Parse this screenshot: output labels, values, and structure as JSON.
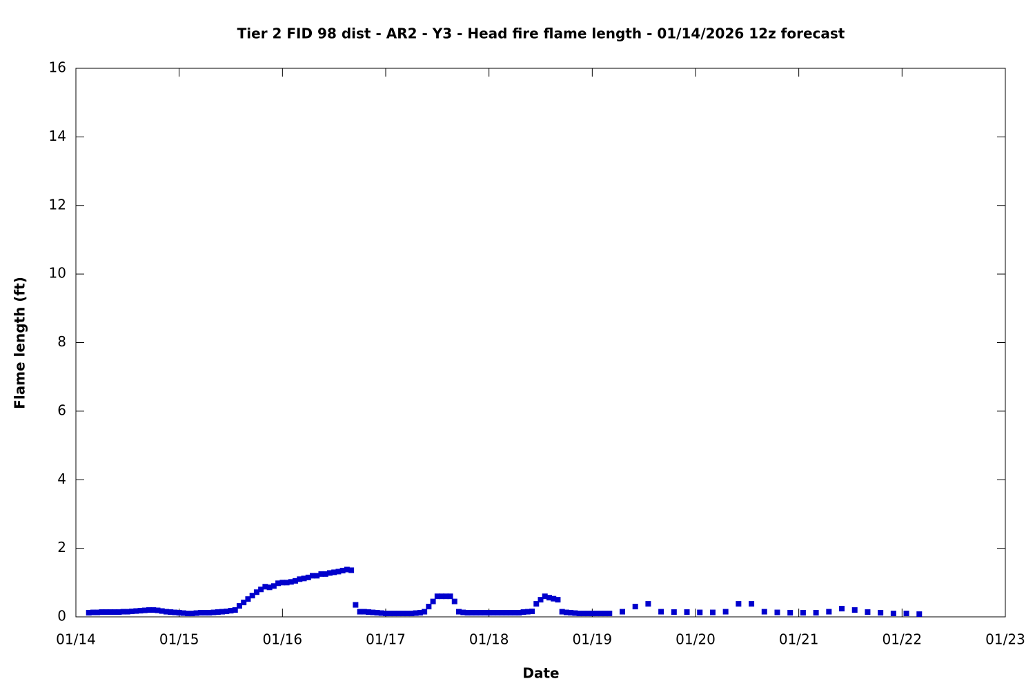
{
  "chart_data": {
    "type": "scatter",
    "title": "Tier 2 FID 98 dist - AR2 - Y3 - Head fire flame length - 01/14/2026 12z forecast",
    "xlabel": "Date",
    "ylabel": "Flame length (ft)",
    "xlim": [
      0,
      216
    ],
    "ylim": [
      0,
      16
    ],
    "xticks": [
      {
        "value": 0,
        "label": "01/14"
      },
      {
        "value": 24,
        "label": "01/15"
      },
      {
        "value": 48,
        "label": "01/16"
      },
      {
        "value": 72,
        "label": "01/17"
      },
      {
        "value": 96,
        "label": "01/18"
      },
      {
        "value": 120,
        "label": "01/19"
      },
      {
        "value": 144,
        "label": "01/20"
      },
      {
        "value": 168,
        "label": "01/21"
      },
      {
        "value": 192,
        "label": "01/22"
      },
      {
        "value": 216,
        "label": "01/23"
      }
    ],
    "yticks": [
      0,
      2,
      4,
      6,
      8,
      10,
      12,
      14,
      16
    ],
    "grid": false,
    "color": "#0000cc",
    "x": [
      3,
      4,
      5,
      6,
      7,
      8,
      9,
      10,
      11,
      12,
      13,
      14,
      15,
      16,
      17,
      18,
      19,
      20,
      21,
      22,
      23,
      24,
      25,
      26,
      27,
      28,
      29,
      30,
      31,
      32,
      33,
      34,
      35,
      36,
      37,
      38,
      39,
      40,
      41,
      42,
      43,
      44,
      45,
      46,
      47,
      48,
      49,
      50,
      51,
      52,
      53,
      54,
      55,
      56,
      57,
      58,
      59,
      60,
      61,
      62,
      63,
      64,
      65,
      66,
      67,
      68,
      69,
      70,
      71,
      72,
      73,
      74,
      75,
      76,
      77,
      78,
      79,
      80,
      81,
      82,
      83,
      84,
      85,
      86,
      87,
      88,
      89,
      90,
      91,
      92,
      93,
      94,
      95,
      96,
      97,
      98,
      99,
      100,
      101,
      102,
      103,
      104,
      105,
      106,
      107,
      108,
      109,
      110,
      111,
      112,
      113,
      114,
      115,
      116,
      117,
      118,
      119,
      120,
      121,
      122,
      123,
      124,
      127,
      130,
      133,
      136,
      139,
      142,
      145,
      148,
      151,
      154,
      157,
      160,
      163,
      166,
      169,
      172,
      175,
      178,
      181,
      184,
      187,
      190,
      193,
      196
    ],
    "values": [
      0.12,
      0.13,
      0.13,
      0.14,
      0.14,
      0.14,
      0.14,
      0.14,
      0.15,
      0.15,
      0.16,
      0.17,
      0.18,
      0.19,
      0.2,
      0.2,
      0.19,
      0.17,
      0.15,
      0.14,
      0.13,
      0.12,
      0.11,
      0.1,
      0.1,
      0.11,
      0.12,
      0.12,
      0.12,
      0.13,
      0.14,
      0.15,
      0.16,
      0.18,
      0.2,
      0.32,
      0.42,
      0.52,
      0.62,
      0.72,
      0.8,
      0.88,
      0.86,
      0.9,
      0.98,
      1.0,
      1.0,
      1.02,
      1.05,
      1.1,
      1.12,
      1.15,
      1.2,
      1.2,
      1.25,
      1.25,
      1.28,
      1.3,
      1.32,
      1.35,
      1.38,
      1.36,
      0.35,
      0.15,
      0.15,
      0.14,
      0.13,
      0.12,
      0.11,
      0.1,
      0.1,
      0.1,
      0.1,
      0.1,
      0.1,
      0.1,
      0.11,
      0.12,
      0.15,
      0.3,
      0.45,
      0.6,
      0.6,
      0.6,
      0.6,
      0.45,
      0.15,
      0.13,
      0.12,
      0.12,
      0.12,
      0.12,
      0.12,
      0.12,
      0.12,
      0.12,
      0.12,
      0.12,
      0.12,
      0.12,
      0.12,
      0.14,
      0.15,
      0.16,
      0.38,
      0.5,
      0.6,
      0.56,
      0.53,
      0.5,
      0.15,
      0.13,
      0.12,
      0.11,
      0.1,
      0.1,
      0.1,
      0.1,
      0.1,
      0.1,
      0.1,
      0.1,
      0.15,
      0.3,
      0.38,
      0.15,
      0.14,
      0.14,
      0.13,
      0.13,
      0.15,
      0.38,
      0.38,
      0.15,
      0.13,
      0.12,
      0.12,
      0.12,
      0.15,
      0.24,
      0.2,
      0.14,
      0.12,
      0.1,
      0.1,
      0.08
    ]
  }
}
